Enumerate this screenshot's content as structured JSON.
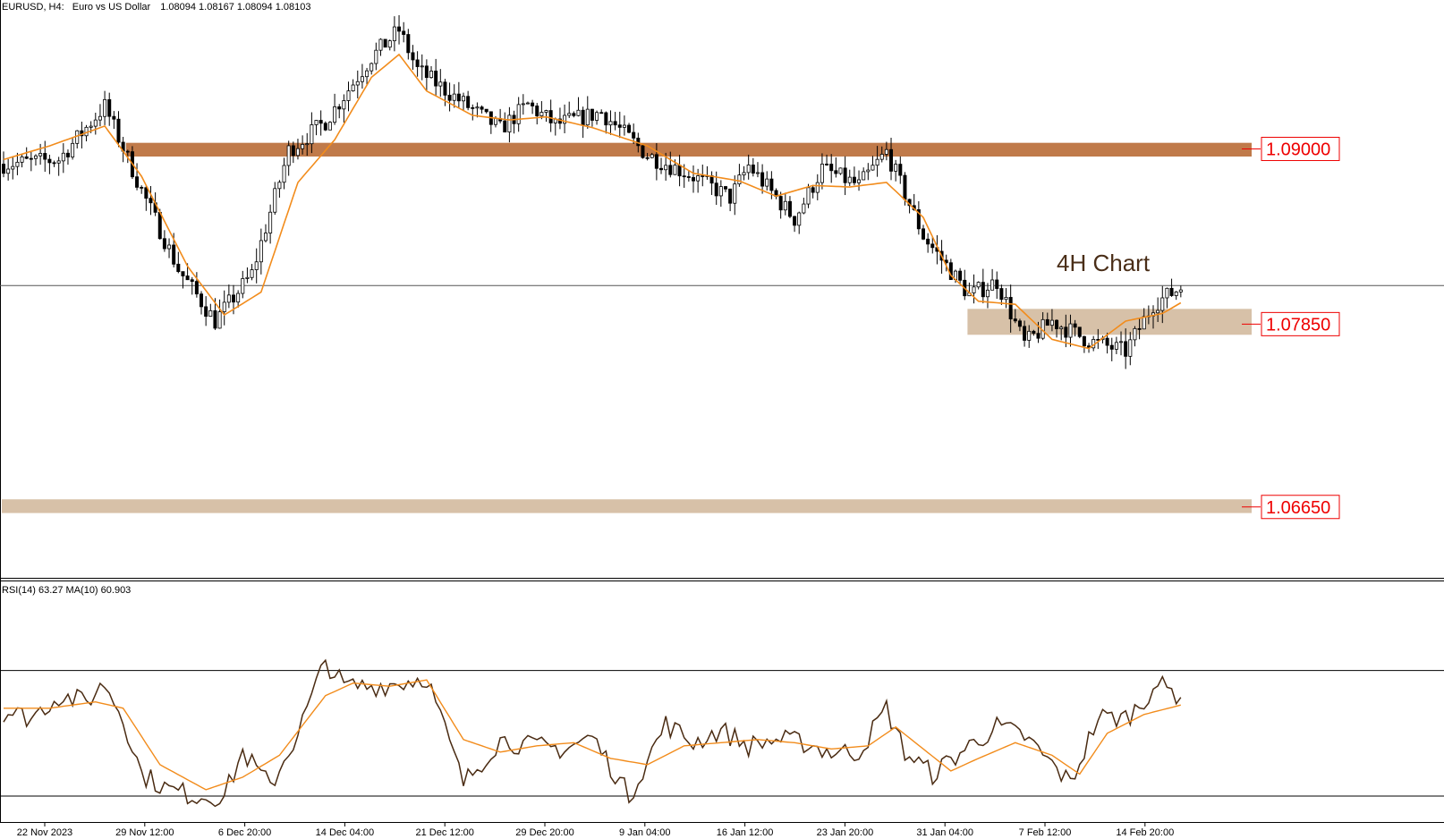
{
  "header": {
    "symbol": "EURUSD, H4:",
    "description": "Euro vs US Dollar",
    "ohlc": "1.08094 1.08167 1.08094 1.08103"
  },
  "annotation": "4H Chart",
  "rsi_header": "RSI(14) 63.27 MA(10) 60.903",
  "colors": {
    "candle": "#000000",
    "ma": "#f28c1c",
    "rsi": "#4a2b12",
    "zone_dark": "#c07a4a",
    "zone_light": "#d7c1a8",
    "label_red": "#ee0000"
  },
  "chart_data": [
    {
      "type": "candlestick",
      "symbol": "EURUSD",
      "timeframe": "H4",
      "ylim": [
        1.0622,
        1.0986
      ],
      "x_tick_labels": [
        "22 Nov 2023",
        "29 Nov 12:00",
        "6 Dec 20:00",
        "14 Dec 04:00",
        "21 Dec 12:00",
        "29 Dec 20:00",
        "9 Jan 04:00",
        "16 Jan 12:00",
        "23 Jan 20:00",
        "31 Jan 04:00",
        "7 Feb 12:00",
        "14 Feb 20:00"
      ],
      "close_path": [
        [
          0,
          1.089
        ],
        [
          12,
          1.0893
        ],
        [
          22,
          1.0928
        ],
        [
          30,
          1.0873
        ],
        [
          38,
          1.0821
        ],
        [
          46,
          1.0787
        ],
        [
          54,
          1.0818
        ],
        [
          62,
          1.0899
        ],
        [
          70,
          1.0918
        ],
        [
          80,
          1.096
        ],
        [
          86,
          1.0978
        ],
        [
          90,
          1.0952
        ],
        [
          100,
          1.093
        ],
        [
          108,
          1.0913
        ],
        [
          114,
          1.0929
        ],
        [
          120,
          1.0916
        ],
        [
          130,
          1.0924
        ],
        [
          140,
          1.0896
        ],
        [
          150,
          1.0882
        ],
        [
          158,
          1.0868
        ],
        [
          162,
          1.0889
        ],
        [
          172,
          1.0854
        ],
        [
          178,
          1.0887
        ],
        [
          186,
          1.0876
        ],
        [
          192,
          1.0898
        ],
        [
          200,
          1.0843
        ],
        [
          210,
          1.0804
        ],
        [
          216,
          1.0813
        ],
        [
          222,
          1.0772
        ],
        [
          228,
          1.0787
        ],
        [
          236,
          1.0774
        ],
        [
          244,
          1.0767
        ],
        [
          250,
          1.0798
        ],
        [
          256,
          1.0809
        ]
      ],
      "ma_path": [
        [
          0,
          1.0893
        ],
        [
          10,
          1.0902
        ],
        [
          22,
          1.0915
        ],
        [
          30,
          1.0882
        ],
        [
          40,
          1.0823
        ],
        [
          48,
          1.0791
        ],
        [
          56,
          1.0806
        ],
        [
          64,
          1.0878
        ],
        [
          72,
          1.0906
        ],
        [
          80,
          1.0947
        ],
        [
          86,
          1.0962
        ],
        [
          92,
          1.0938
        ],
        [
          102,
          1.0922
        ],
        [
          110,
          1.0919
        ],
        [
          118,
          1.0921
        ],
        [
          128,
          1.0914
        ],
        [
          140,
          1.0902
        ],
        [
          150,
          1.0884
        ],
        [
          160,
          1.0879
        ],
        [
          168,
          1.0869
        ],
        [
          176,
          1.0876
        ],
        [
          184,
          1.0875
        ],
        [
          192,
          1.0878
        ],
        [
          200,
          1.0855
        ],
        [
          206,
          1.0817
        ],
        [
          212,
          1.08
        ],
        [
          220,
          1.0798
        ],
        [
          228,
          1.0775
        ],
        [
          236,
          1.0769
        ],
        [
          244,
          1.0787
        ],
        [
          252,
          1.0792
        ],
        [
          256,
          1.0799
        ]
      ],
      "current_price": 1.08103,
      "zones": [
        {
          "label": "1.09000",
          "price": 1.09,
          "low": 1.0895,
          "high": 1.0904,
          "from_bar": 27,
          "shade": "dark"
        },
        {
          "label": "1.07850",
          "price": 1.0785,
          "low": 1.0778,
          "high": 1.0795,
          "from_bar": 210,
          "shade": "light"
        },
        {
          "label": "1.06650",
          "price": 1.0665,
          "low": 1.0661,
          "high": 1.067,
          "from_bar": 0,
          "shade": "light"
        }
      ],
      "annotation": "4H Chart"
    },
    {
      "type": "line",
      "title": "RSI(14) 63.27 MA(10) 60.903",
      "ylim": [
        22,
        95
      ],
      "levels": [
        70,
        30
      ],
      "series": [
        {
          "name": "RSI(14)",
          "points": [
            [
              0,
              57
            ],
            [
              6,
              55
            ],
            [
              12,
              62
            ],
            [
              18,
              60
            ],
            [
              22,
              66
            ],
            [
              26,
              55
            ],
            [
              30,
              37
            ],
            [
              36,
              32
            ],
            [
              42,
              30
            ],
            [
              48,
              30
            ],
            [
              52,
              44
            ],
            [
              58,
              33
            ],
            [
              64,
              50
            ],
            [
              70,
              73
            ],
            [
              74,
              65
            ],
            [
              80,
              65
            ],
            [
              86,
              66
            ],
            [
              92,
              68
            ],
            [
              100,
              34
            ],
            [
              108,
              48
            ],
            [
              114,
              46
            ],
            [
              122,
              45
            ],
            [
              128,
              49
            ],
            [
              136,
              30
            ],
            [
              144,
              53
            ],
            [
              150,
              47
            ],
            [
              156,
              51
            ],
            [
              162,
              46
            ],
            [
              168,
              48
            ],
            [
              174,
              47
            ],
            [
              180,
              44
            ],
            [
              186,
              44
            ],
            [
              192,
              58
            ],
            [
              196,
              44
            ],
            [
              202,
              37
            ],
            [
              210,
              46
            ],
            [
              216,
              52
            ],
            [
              222,
              49
            ],
            [
              228,
              40
            ],
            [
              232,
              34
            ],
            [
              238,
              55
            ],
            [
              244,
              55
            ],
            [
              248,
              60
            ],
            [
              250,
              66
            ],
            [
              256,
              62
            ]
          ]
        },
        {
          "name": "MA(10)",
          "points": [
            [
              0,
              58
            ],
            [
              10,
              58
            ],
            [
              20,
              60
            ],
            [
              26,
              58
            ],
            [
              34,
              40
            ],
            [
              44,
              32
            ],
            [
              52,
              36
            ],
            [
              60,
              43
            ],
            [
              70,
              62
            ],
            [
              76,
              66
            ],
            [
              84,
              65
            ],
            [
              92,
              67
            ],
            [
              100,
              48
            ],
            [
              108,
              44
            ],
            [
              116,
              46
            ],
            [
              124,
              47
            ],
            [
              132,
              42
            ],
            [
              140,
              40
            ],
            [
              148,
              46
            ],
            [
              156,
              47
            ],
            [
              164,
              48
            ],
            [
              172,
              47
            ],
            [
              180,
              45
            ],
            [
              188,
              46
            ],
            [
              194,
              52
            ],
            [
              200,
              45
            ],
            [
              206,
              38
            ],
            [
              212,
              42
            ],
            [
              220,
              47
            ],
            [
              228,
              43
            ],
            [
              234,
              37
            ],
            [
              240,
              50
            ],
            [
              248,
              56
            ],
            [
              256,
              59
            ]
          ]
        }
      ]
    }
  ]
}
